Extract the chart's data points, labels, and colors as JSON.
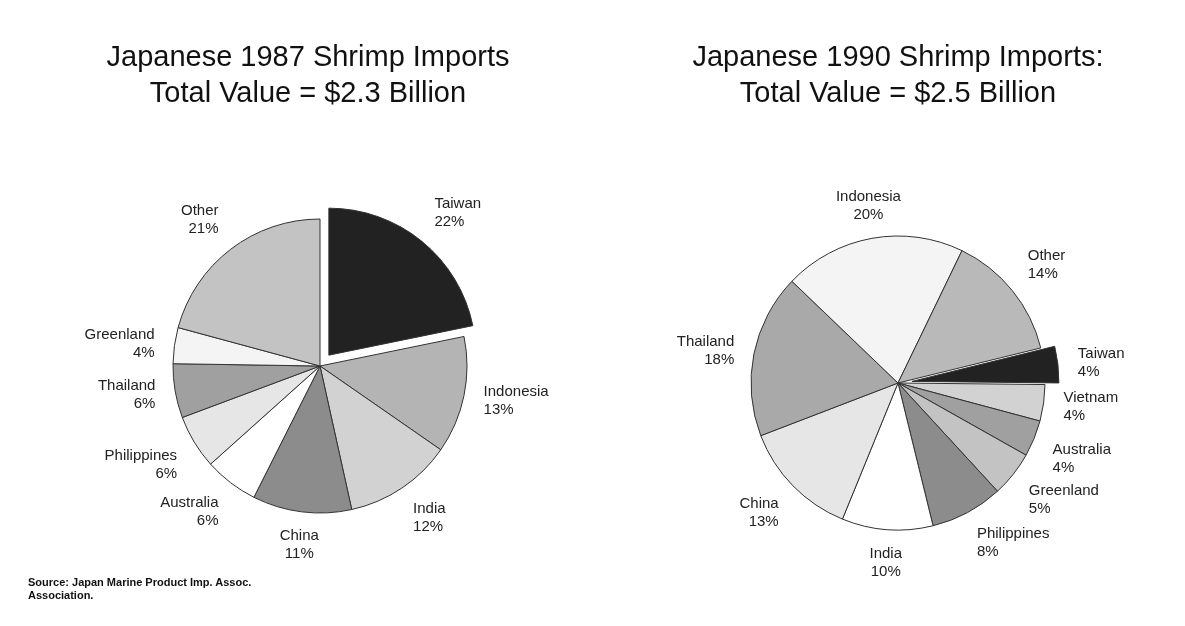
{
  "chart_data": [
    {
      "type": "pie",
      "title": "Japanese 1987 Shrimp Imports\nTotal Value = $2.3 Billion",
      "categories": [
        "Taiwan",
        "Indonesia",
        "India",
        "China",
        "Australia",
        "Philippines",
        "Thailand",
        "Greenland",
        "Other"
      ],
      "values": [
        22,
        13,
        12,
        11,
        6,
        6,
        6,
        4,
        21
      ],
      "value_labels": [
        "22%",
        "13%",
        "12%",
        "11%",
        "6%",
        "6%",
        "6%",
        "4%",
        "21%"
      ],
      "colors": [
        "#222222",
        "#b4b4b4",
        "#d2d2d2",
        "#8c8c8c",
        "#ffffff",
        "#e6e6e6",
        "#a0a0a0",
        "#f4f4f4",
        "#c3c3c3"
      ],
      "annotations": [
        "Source: Japan Marine Product Imp. Assoc.\nAssociation."
      ]
    },
    {
      "type": "pie",
      "title": "Japanese 1990 Shrimp Imports:\nTotal Value = $2.5 Billion",
      "categories": [
        "Taiwan",
        "Vietnam",
        "Australia",
        "Greenland",
        "Philippines",
        "India",
        "China",
        "Thailand",
        "Indonesia",
        "Other"
      ],
      "values": [
        4,
        4,
        4,
        5,
        8,
        10,
        13,
        18,
        20,
        14
      ],
      "value_labels": [
        "4%",
        "4%",
        "4%",
        "5%",
        "8%",
        "10%",
        "13%",
        "18%",
        "20%",
        "14%"
      ],
      "colors": [
        "#222222",
        "#d2d2d2",
        "#a0a0a0",
        "#c3c3c3",
        "#8c8c8c",
        "#ffffff",
        "#e6e6e6",
        "#a9a9a9",
        "#f4f4f4",
        "#b9b9b9"
      ]
    }
  ]
}
